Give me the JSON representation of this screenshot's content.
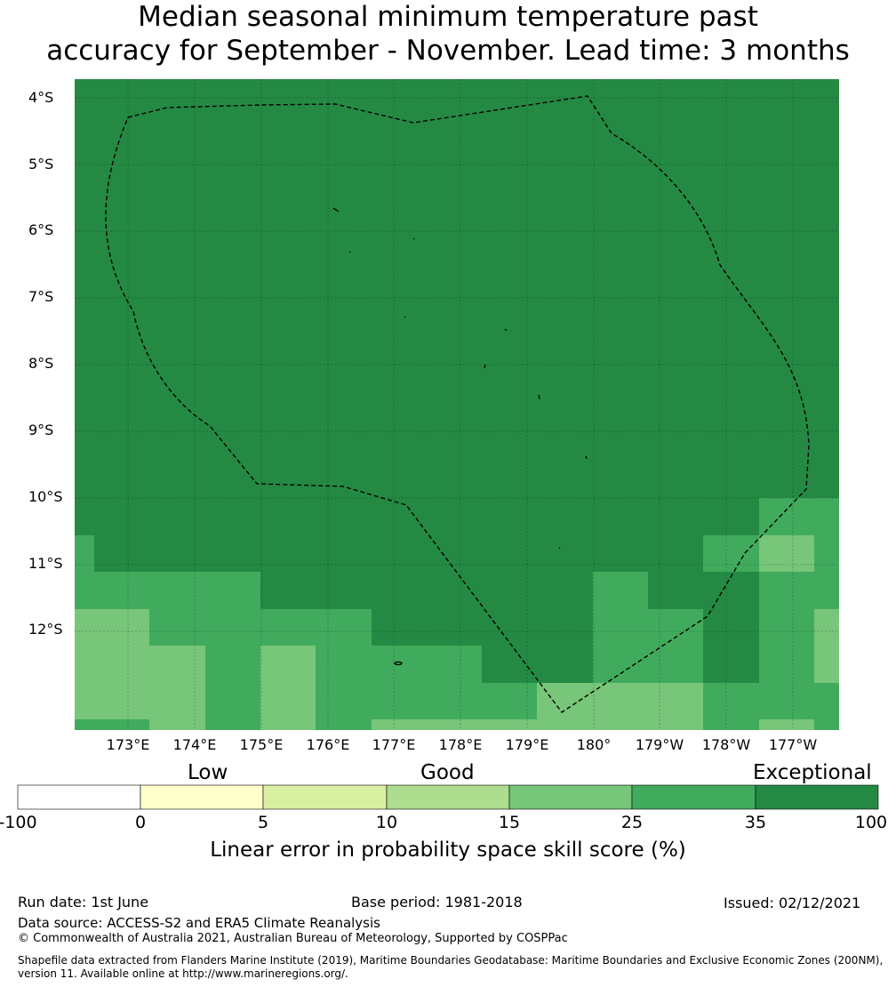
{
  "title": {
    "line1": "Median seasonal minimum temperature past",
    "line2": "accuracy for September - November. Lead time: 3 months"
  },
  "map": {
    "lat_labels": [
      "4°S",
      "5°S",
      "6°S",
      "7°S",
      "8°S",
      "9°S",
      "10°S",
      "11°S",
      "12°S"
    ],
    "lon_labels": [
      "173°E",
      "174°E",
      "175°E",
      "176°E",
      "177°E",
      "178°E",
      "179°E",
      "180°",
      "179°W",
      "178°W",
      "177°W"
    ],
    "colors": {
      "exceptional": "#248a43",
      "c25": "#41ab5d",
      "c15": "#78c679",
      "c10": "#addd8e",
      "c5": "#d9f0a3",
      "c0": "#ffffcc",
      "below": "#ffffff"
    }
  },
  "colorbar": {
    "categories": [
      "Low",
      "Good",
      "Exceptional"
    ],
    "ticks": [
      "-100",
      "0",
      "5",
      "10",
      "15",
      "25",
      "35",
      "100"
    ],
    "colors": [
      "#ffffff",
      "#ffffcc",
      "#d9f0a3",
      "#addd8e",
      "#78c679",
      "#41ab5d",
      "#248a43"
    ],
    "label": "Linear error in probability space skill score (%)"
  },
  "footer": {
    "run_date": "Run date: 1st June",
    "base_period": "Base period: 1981-2018",
    "issued": "Issued: 02/12/2021",
    "data_source": "Data source: ACCESS-S2 and ERA5 Climate Reanalysis",
    "copyright": "© Commonwealth of Australia 2021, Australian Bureau of Meteorology, Supported by COSPPac",
    "shapefile_line1": "Shapefile data extracted from Flanders Marine Institute (2019), Maritime Boundaries Geodatabase: Maritime Boundaries and Exclusive Economic Zones (200NM),",
    "shapefile_line2": "version 11. Available online at http://www.marineregions.org/."
  }
}
